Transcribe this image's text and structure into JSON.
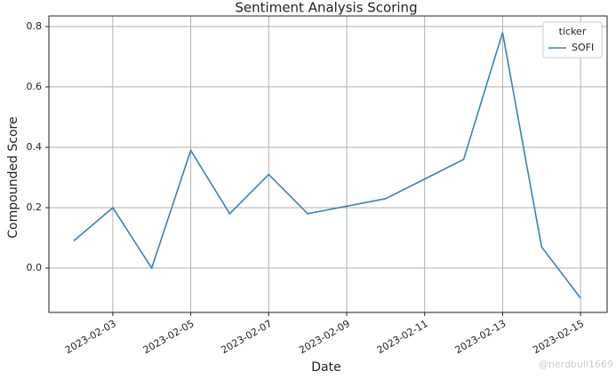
{
  "chart_data": {
    "type": "line",
    "title": "Sentiment Analysis Scoring",
    "x_label": "Date",
    "y_label": "Compounded Score",
    "x": [
      "2023-02-02",
      "2023-02-03",
      "2023-02-04",
      "2023-02-05",
      "2023-02-06",
      "2023-02-07",
      "2023-02-08",
      "2023-02-10",
      "2023-02-12",
      "2023-02-13",
      "2023-02-14",
      "2023-02-15"
    ],
    "series": [
      {
        "name": "SOFI",
        "color": "#3b82b8",
        "values": [
          0.09,
          0.2,
          0.0,
          0.39,
          0.18,
          0.31,
          0.18,
          0.23,
          0.36,
          0.78,
          0.07,
          -0.1
        ]
      }
    ],
    "legend_title": "ticker",
    "legend": "upper right",
    "xlim": [
      "2023-02-01T08:40",
      "2023-02-15T16:20"
    ],
    "xticks": [
      "2023-02-03",
      "2023-02-05",
      "2023-02-07",
      "2023-02-09",
      "2023-02-11",
      "2023-02-13",
      "2023-02-15"
    ],
    "ylim": [
      -0.147,
      0.835
    ],
    "yticks": [
      {
        "value": 0,
        "label": "0.0"
      },
      0.2,
      0.4,
      0.6,
      0.8
    ],
    "grid": true,
    "watermark": "@nerdbull1669"
  }
}
